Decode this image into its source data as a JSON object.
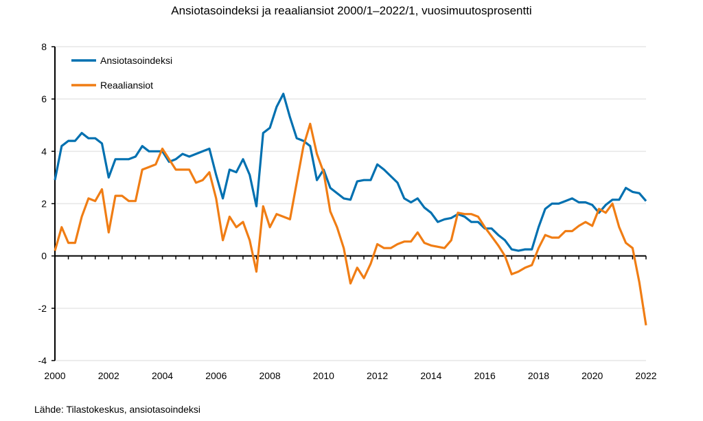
{
  "chart_data": {
    "type": "line",
    "title": "Ansiotasoindeksi ja reaaliansiot 2000/1–2022/1, vuosimuutosprosentti",
    "source": "Lähde: Tilastokeskus, ansiotasoindeksi",
    "x_start": "2000/1",
    "x_end": "2022/1",
    "frequency": "quarterly",
    "xlim": [
      2000,
      2022
    ],
    "x_ticks": [
      "2000",
      "2002",
      "2004",
      "2006",
      "2008",
      "2010",
      "2012",
      "2014",
      "2016",
      "2018",
      "2020",
      "2022"
    ],
    "ylim": [
      -4,
      8
    ],
    "y_ticks": [
      "8",
      "6",
      "4",
      "2",
      "0",
      "-2",
      "-4"
    ],
    "grid": true,
    "legend": "top-left",
    "series": [
      {
        "name": "Ansiotasoindeksi",
        "color": "#0070b0",
        "values": [
          2.9,
          4.2,
          4.4,
          4.4,
          4.7,
          4.5,
          4.5,
          4.3,
          3.0,
          3.7,
          3.7,
          3.7,
          3.8,
          4.2,
          4.0,
          4.0,
          4.0,
          3.6,
          3.7,
          3.9,
          3.8,
          3.9,
          4.0,
          4.1,
          3.1,
          2.2,
          3.3,
          3.2,
          3.7,
          3.1,
          1.9,
          4.7,
          4.9,
          5.7,
          6.2,
          5.3,
          4.5,
          4.4,
          4.2,
          2.9,
          3.3,
          2.6,
          2.4,
          2.2,
          2.15,
          2.85,
          2.9,
          2.9,
          3.5,
          3.3,
          3.05,
          2.8,
          2.2,
          2.05,
          2.2,
          1.85,
          1.65,
          1.3,
          1.4,
          1.45,
          1.6,
          1.5,
          1.3,
          1.3,
          1.05,
          1.05,
          0.8,
          0.6,
          0.25,
          0.2,
          0.25,
          0.25,
          1.1,
          1.8,
          2.0,
          2.0,
          2.1,
          2.2,
          2.05,
          2.05,
          1.95,
          1.65,
          1.95,
          2.15,
          2.15,
          2.6,
          2.45,
          2.4,
          2.1
        ]
      },
      {
        "name": "Reaaliansiot",
        "color": "#f07d14",
        "values": [
          0.2,
          1.1,
          0.5,
          0.5,
          1.5,
          2.2,
          2.1,
          2.55,
          0.9,
          2.3,
          2.3,
          2.1,
          2.1,
          3.3,
          3.4,
          3.5,
          4.1,
          3.7,
          3.3,
          3.3,
          3.3,
          2.8,
          2.9,
          3.2,
          2.2,
          0.6,
          1.5,
          1.1,
          1.3,
          0.6,
          -0.6,
          1.9,
          1.1,
          1.6,
          1.5,
          1.4,
          2.8,
          4.2,
          5.05,
          3.9,
          3.2,
          1.7,
          1.1,
          0.3,
          -1.05,
          -0.45,
          -0.85,
          -0.3,
          0.45,
          0.3,
          0.3,
          0.45,
          0.55,
          0.55,
          0.9,
          0.5,
          0.4,
          0.35,
          0.3,
          0.6,
          1.65,
          1.6,
          1.6,
          1.5,
          1.1,
          0.75,
          0.4,
          0.0,
          -0.7,
          -0.6,
          -0.45,
          -0.35,
          0.3,
          0.8,
          0.7,
          0.7,
          0.95,
          0.95,
          1.15,
          1.3,
          1.15,
          1.8,
          1.65,
          2.0,
          1.1,
          0.5,
          0.3,
          -1.0,
          -2.65
        ]
      }
    ]
  }
}
